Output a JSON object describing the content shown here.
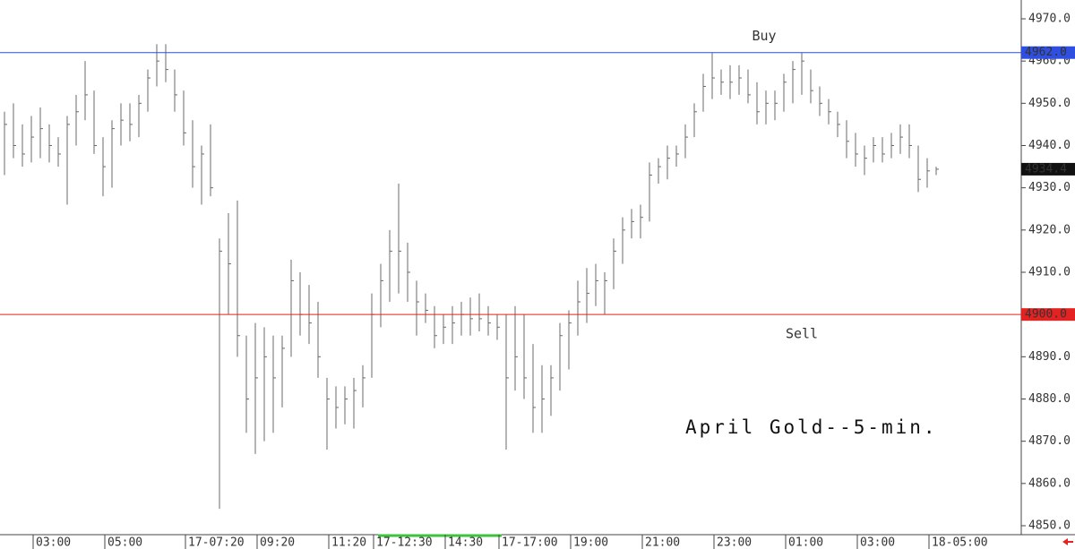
{
  "chart_data": {
    "type": "ohlc",
    "annotation": "April Gold--5-min.",
    "color": "#6a6a6a",
    "categories": [
      null,
      null,
      null,
      null,
      "03:00",
      null,
      null,
      null,
      null,
      null,
      null,
      null,
      "05:00",
      null,
      null,
      null,
      null,
      null,
      null,
      null,
      null,
      "17-07:20",
      null,
      null,
      null,
      null,
      null,
      null,
      null,
      "09:20",
      null,
      null,
      null,
      null,
      null,
      null,
      null,
      "11:20",
      null,
      null,
      null,
      null,
      "17-12:30",
      null,
      null,
      null,
      null,
      null,
      null,
      null,
      "14:30",
      null,
      null,
      null,
      null,
      null,
      "17-17:00",
      null,
      null,
      null,
      null,
      null,
      null,
      null,
      "19:00",
      null,
      null,
      null,
      null,
      null,
      null,
      null,
      "21:00",
      null,
      null,
      null,
      null,
      null,
      null,
      null,
      "23:00",
      null,
      null,
      null,
      null,
      null,
      null,
      null,
      "01:00",
      null,
      null,
      null,
      null,
      null,
      null,
      null,
      "03:00",
      null,
      null,
      null,
      null,
      null,
      null,
      null,
      "18-05:00"
    ],
    "high": [
      4948,
      4950,
      4945,
      4947,
      4949,
      4945,
      4942,
      4947,
      4952,
      4960,
      4953,
      4942,
      4946,
      4950,
      4950,
      4952,
      4958,
      4964,
      4964,
      4958,
      4953,
      4946,
      4940,
      4945,
      4918,
      4924,
      4927,
      4895,
      4898,
      4897,
      4895,
      4895,
      4913,
      4910,
      4907,
      4903,
      4885,
      4883,
      4883,
      4885,
      4888,
      4905,
      4912,
      4920,
      4931,
      4917,
      4908,
      4905,
      4902,
      4900,
      4902,
      4903,
      4904,
      4905,
      4902,
      4900,
      4900,
      4902,
      4900,
      4893,
      4888,
      4888,
      4898,
      4901,
      4908,
      4911,
      4912,
      4910,
      4918,
      4923,
      4925,
      4926,
      4936,
      4937,
      4940,
      4940,
      4945,
      4950,
      4957,
      4962,
      4958,
      4959,
      4959,
      4958,
      4955,
      4953,
      4953,
      4957,
      4960,
      4962,
      4958,
      4954,
      4951,
      4948,
      4946,
      4943,
      4940,
      4942,
      4942,
      4943,
      4945,
      4945,
      4940,
      4937,
      4935
    ],
    "low": [
      4933,
      4937,
      4935,
      4936,
      4937,
      4936,
      4935,
      4926,
      4940,
      4946,
      4938,
      4928,
      4930,
      4940,
      4941,
      4942,
      4948,
      4954,
      4955,
      4948,
      4940,
      4930,
      4926,
      4928,
      4854,
      4900,
      4890,
      4872,
      4867,
      4870,
      4872,
      4878,
      4890,
      4895,
      4893,
      4885,
      4868,
      4873,
      4874,
      4873,
      4878,
      4885,
      4897,
      4903,
      4905,
      4903,
      4895,
      4898,
      4892,
      4893,
      4893,
      4895,
      4895,
      4896,
      4895,
      4894,
      4868,
      4882,
      4880,
      4872,
      4872,
      4876,
      4882,
      4887,
      4895,
      4898,
      4902,
      4900,
      4906,
      4912,
      4918,
      4918,
      4922,
      4931,
      4932,
      4935,
      4937,
      4942,
      4948,
      4951,
      4952,
      4951,
      4952,
      4950,
      4945,
      4945,
      4946,
      4948,
      4950,
      4952,
      4950,
      4947,
      4945,
      4942,
      4937,
      4935,
      4933,
      4936,
      4936,
      4937,
      4938,
      4937,
      4929,
      4930,
      4933
    ],
    "close": [
      4945,
      4940,
      4938,
      4942,
      4944,
      4940,
      4938,
      4945,
      4948,
      4952,
      4940,
      4935,
      4944,
      4946,
      4945,
      4950,
      4956,
      4960,
      4958,
      4952,
      4943,
      4935,
      4938,
      4930,
      4915,
      4912,
      4895,
      4880,
      4885,
      4890,
      4885,
      4892,
      4908,
      4900,
      4898,
      4890,
      4880,
      4878,
      4880,
      4882,
      4885,
      4900,
      4908,
      4915,
      4915,
      4910,
      4903,
      4901,
      4895,
      4897,
      4898,
      4900,
      4899,
      4899,
      4898,
      4897,
      4885,
      4890,
      4885,
      4878,
      4880,
      4885,
      4895,
      4898,
      4903,
      4905,
      4908,
      4908,
      4915,
      4920,
      4922,
      4923,
      4933,
      4935,
      4937,
      4938,
      4942,
      4948,
      4954,
      4956,
      4955,
      4955,
      4956,
      4952,
      4948,
      4950,
      4950,
      4955,
      4958,
      4960,
      4953,
      4950,
      4948,
      4945,
      4941,
      4938,
      4937,
      4940,
      4938,
      4940,
      4942,
      4940,
      4932,
      4934,
      4934.4
    ],
    "last": {
      "value": 4934.4,
      "label": "4934.4"
    },
    "levels": [
      {
        "name": "Buy",
        "value": 4962,
        "label": "4962.0",
        "color": "#2f4fe0"
      },
      {
        "name": "Sell",
        "value": 4900,
        "label": "4900.0",
        "color": "#e52222"
      }
    ],
    "ylim": [
      4850,
      4970
    ],
    "yticks": [
      {
        "value": 4850,
        "label": "4850.0"
      },
      {
        "value": 4860,
        "label": "4860.0"
      },
      {
        "value": 4870,
        "label": "4870.0"
      },
      {
        "value": 4880,
        "label": "4880.0"
      },
      {
        "value": 4890,
        "label": "4890.0"
      },
      {
        "value": 4900,
        "label": "4900.0"
      },
      {
        "value": 4910,
        "label": "4910.0"
      },
      {
        "value": 4920,
        "label": "4920.0"
      },
      {
        "value": 4930,
        "label": "4930.0"
      },
      {
        "value": 4940,
        "label": "4940.0"
      },
      {
        "value": 4950,
        "label": "4950.0"
      },
      {
        "value": 4960,
        "label": "4960.0"
      },
      {
        "value": 4970,
        "label": "4970.0"
      }
    ]
  }
}
